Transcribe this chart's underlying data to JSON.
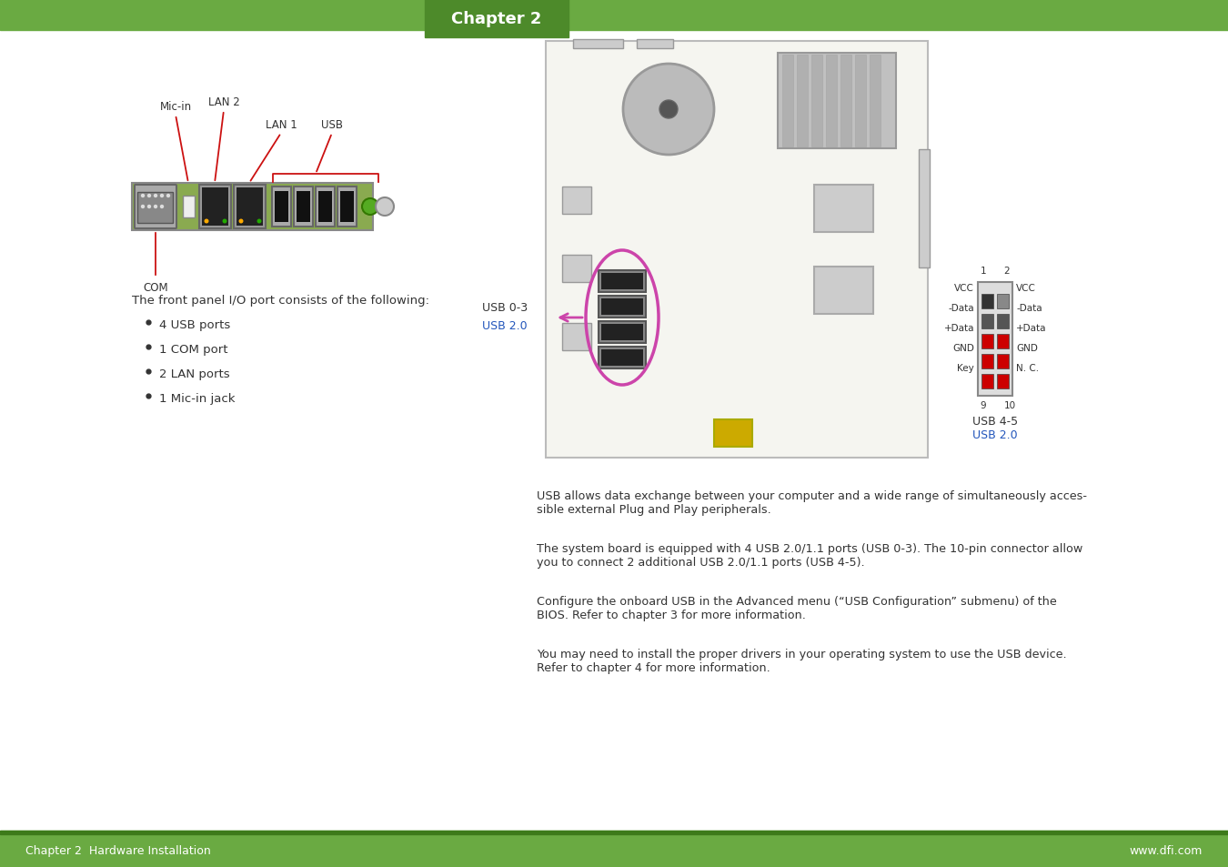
{
  "bg_color": "#ffffff",
  "header_green": "#6aaa42",
  "header_dark": "#4d8a2a",
  "footer_green": "#6aaa42",
  "footer_dark": "#3d7a1a",
  "header_text": "Chapter 2",
  "footer_left": "Chapter 2  Hardware Installation",
  "footer_right": "www.dfi.com",
  "text_color": "#333333",
  "red": "#cc1111",
  "blue": "#2255bb",
  "pink": "#cc44aa",
  "intro_text": "The front panel I/O port consists of the following:",
  "bullets": [
    "4 USB ports",
    "1 COM port",
    "2 LAN ports",
    "1 Mic-in jack"
  ],
  "pin_left": [
    "VCC",
    "-Data",
    "+Data",
    "GND",
    "Key"
  ],
  "pin_right": [
    "VCC",
    "-Data",
    "+Data",
    "GND",
    "N. C."
  ],
  "usb03_label": "USB 0-3",
  "usb03_sub": "USB 2.0",
  "usb45_label": "USB 4-5",
  "usb45_sub": "USB 2.0",
  "para1_lines": [
    "USB allows data exchange between your computer and a wide range of simultaneously acces-",
    "sible external Plug and Play peripherals."
  ],
  "para2_lines": [
    "The system board is equipped with 4 USB 2.0/1.1 ports (USB 0-3). The 10-pin connector allow",
    "you to connect 2 additional USB 2.0/1.1 ports (USB 4-5)."
  ],
  "para3_lines": [
    "Configure the onboard USB in the Advanced menu (“USB Configuration” submenu) of the",
    "BIOS. Refer to chapter 3 for more information."
  ],
  "para4_lines": [
    "You may need to install the proper drivers in your operating system to use the USB device.",
    "Refer to chapter 4 for more information."
  ]
}
